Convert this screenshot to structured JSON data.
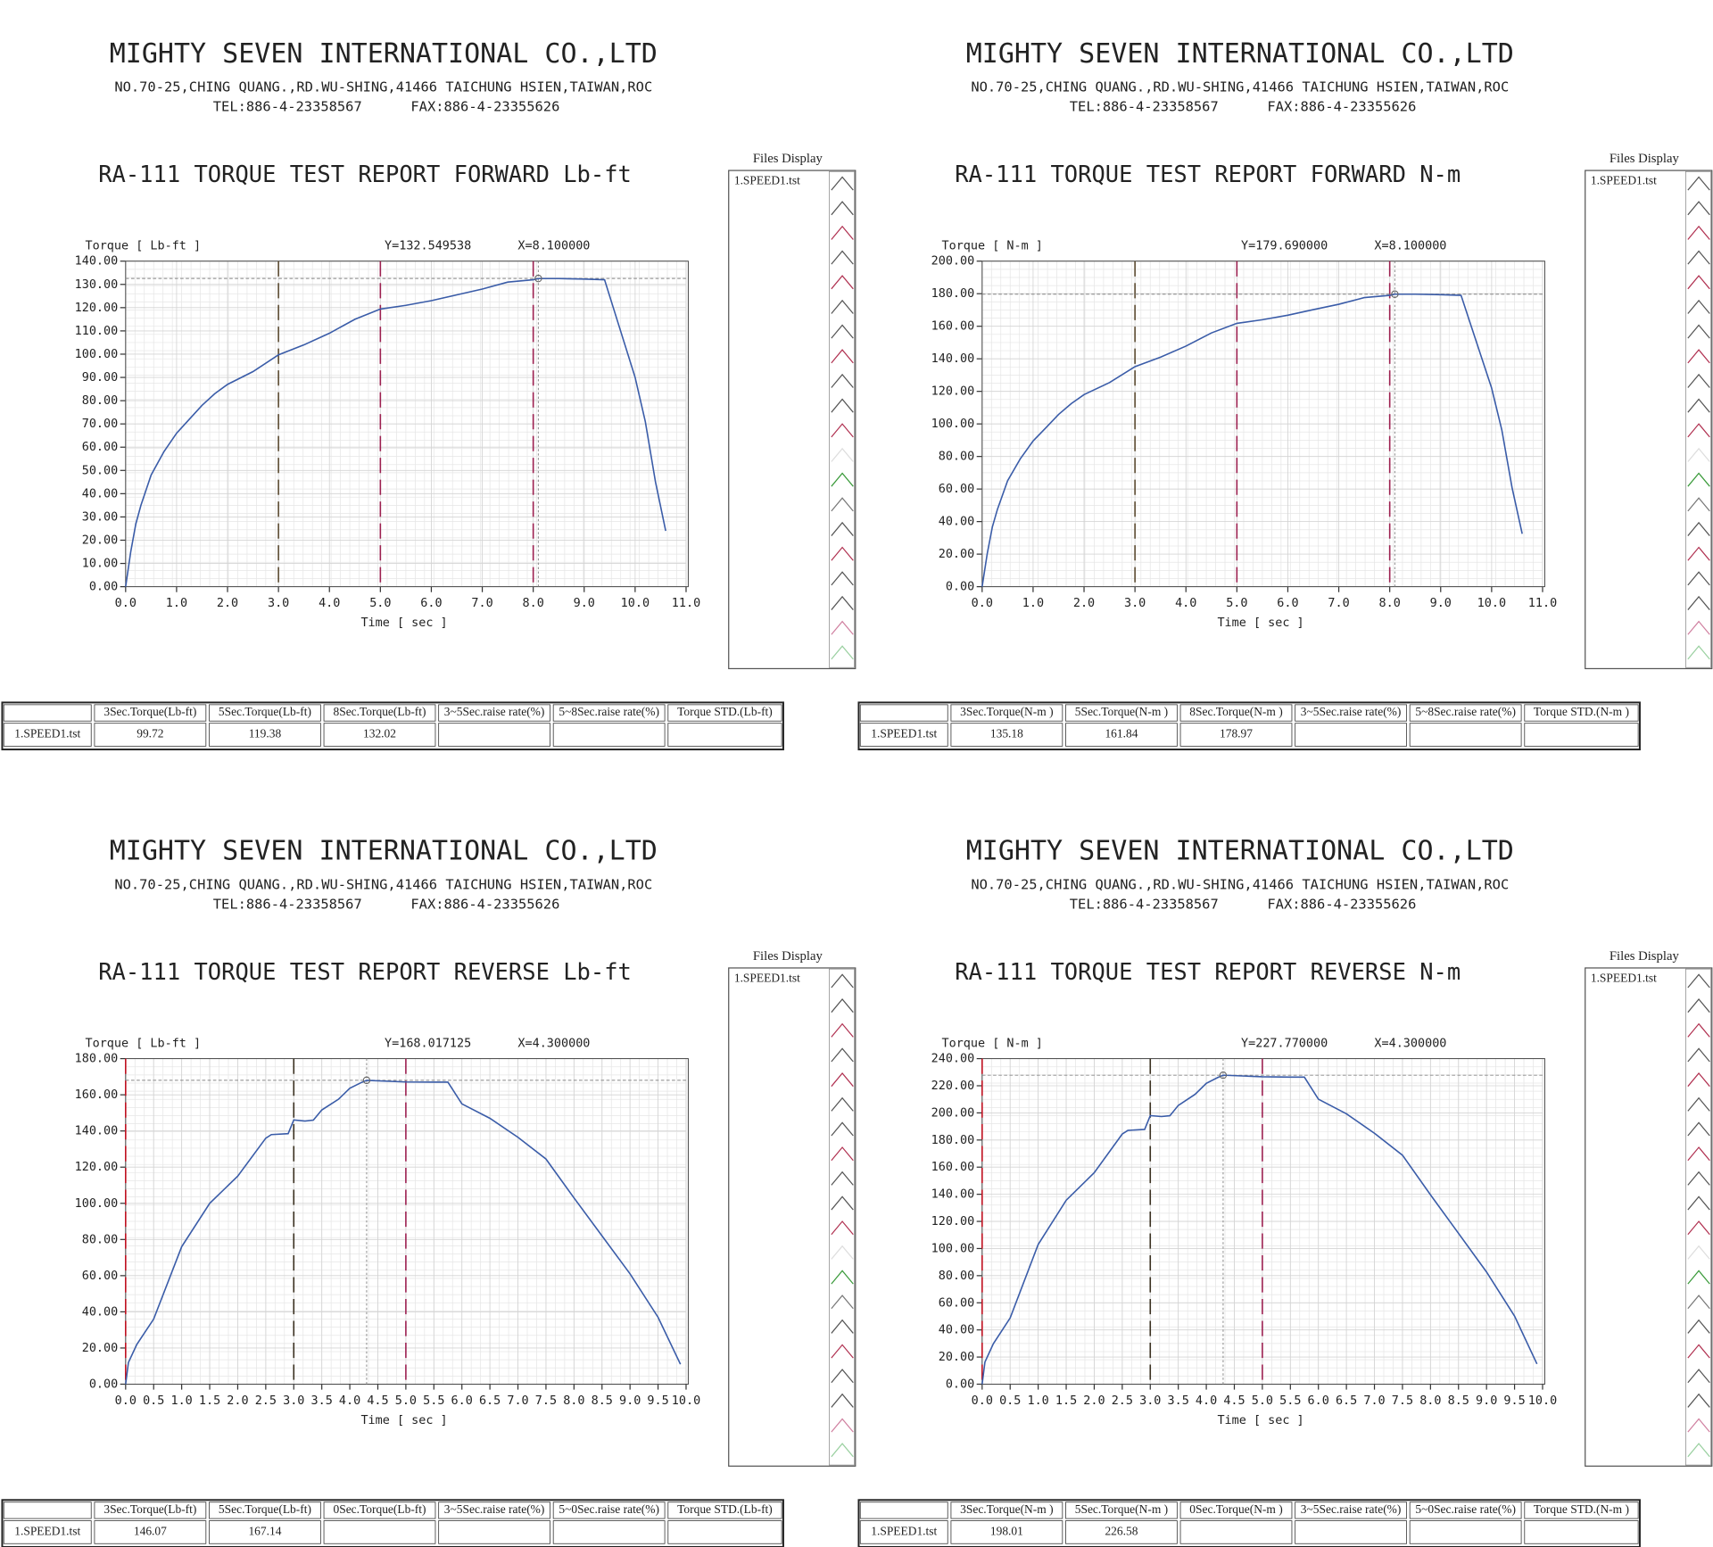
{
  "panels": [
    {
      "company": "MIGHTY SEVEN INTERNATIONAL CO.,LTD",
      "address": "NO.70-25,CHING QUANG.,RD.WU-SHING,41466 TAICHUNG HSIEN,TAIWAN,ROC",
      "tel": "TEL:886-4-23358567",
      "fax": "FAX:886-4-23355626",
      "files_title": "Files Display",
      "files": [
        "1.SPEED1.tst"
      ],
      "table": {
        "header": [
          "3Sec.Torque(Lb-ft)",
          "5Sec.Torque(Lb-ft)",
          "8Sec.Torque(Lb-ft)",
          "3~5Sec.raise rate(%)",
          "5~8Sec.raise rate(%)",
          "Torque STD.(Lb-ft)"
        ],
        "rows": [
          [
            "1.SPEED1.tst",
            "99.72",
            "119.38",
            "132.02"
          ]
        ]
      }
    },
    {
      "company": "MIGHTY SEVEN INTERNATIONAL CO.,LTD",
      "address": "NO.70-25,CHING QUANG.,RD.WU-SHING,41466 TAICHUNG HSIEN,TAIWAN,ROC",
      "tel": "TEL:886-4-23358567",
      "fax": "FAX:886-4-23355626",
      "files_title": "Files Display",
      "files": [
        "1.SPEED1.tst"
      ],
      "table": {
        "header": [
          "3Sec.Torque(N-m )",
          "5Sec.Torque(N-m )",
          "8Sec.Torque(N-m )",
          "3~5Sec.raise rate(%)",
          "5~8Sec.raise rate(%)",
          "Torque STD.(N-m )"
        ],
        "rows": [
          [
            "1.SPEED1.tst",
            "135.18",
            "161.84",
            "178.97"
          ]
        ]
      }
    },
    {
      "company": "MIGHTY SEVEN INTERNATIONAL CO.,LTD",
      "address": "NO.70-25,CHING QUANG.,RD.WU-SHING,41466 TAICHUNG HSIEN,TAIWAN,ROC",
      "tel": "TEL:886-4-23358567",
      "fax": "FAX:886-4-23355626",
      "files_title": "Files Display",
      "files": [
        "1.SPEED1.tst"
      ],
      "table": {
        "header": [
          "3Sec.Torque(Lb-ft)",
          "5Sec.Torque(Lb-ft)",
          "0Sec.Torque(Lb-ft)",
          "3~5Sec.raise rate(%)",
          "5~0Sec.raise rate(%)",
          "Torque STD.(Lb-ft)"
        ],
        "rows": [
          [
            "1.SPEED1.tst",
            "146.07",
            "167.14"
          ]
        ]
      }
    },
    {
      "company": "MIGHTY SEVEN INTERNATIONAL CO.,LTD",
      "address": "NO.70-25,CHING QUANG.,RD.WU-SHING,41466 TAICHUNG HSIEN,TAIWAN,ROC",
      "tel": "TEL:886-4-23358567",
      "fax": "FAX:886-4-23355626",
      "files_title": "Files Display",
      "files": [
        "1.SPEED1.tst"
      ],
      "table": {
        "header": [
          "3Sec.Torque(N-m )",
          "5Sec.Torque(N-m )",
          "0Sec.Torque(N-m )",
          "3~5Sec.raise rate(%)",
          "5~0Sec.raise rate(%)",
          "Torque STD.(N-m )"
        ],
        "rows": [
          [
            "1.SPEED1.tst",
            "198.01",
            "226.58"
          ]
        ]
      }
    }
  ],
  "chart_data": [
    {
      "type": "line",
      "title": "RA-111 TORQUE TEST REPORT FORWARD Lb-ft",
      "y_label": "Torque [ Lb-ft ]",
      "x_label": "Time [ sec ]",
      "cursor": {
        "y": {
          "value": 132.549538,
          "label": "Y=132.549538"
        },
        "x": {
          "value": 8.1,
          "label": "X=8.100000"
        }
      },
      "markers": [
        {
          "x": 3,
          "color": "#5a4a30"
        },
        {
          "x": 5,
          "color": "#9c2050"
        },
        {
          "x": 8,
          "color": "#9c2050"
        }
      ],
      "x": [
        0,
        0.1,
        0.2,
        0.3,
        0.5,
        0.75,
        1,
        1.25,
        1.5,
        1.75,
        2,
        2.5,
        3,
        3.5,
        4,
        4.5,
        5,
        5.5,
        6,
        6.5,
        7,
        7.5,
        8,
        8.1,
        8.5,
        9,
        9.4,
        9.6,
        9.8,
        10,
        10.2,
        10.4,
        10.6
      ],
      "series": [
        {
          "color": "#3a5ca8",
          "values": [
            0,
            15,
            27,
            35,
            48,
            58,
            66,
            72,
            78,
            83,
            87,
            92.5,
            99.7,
            104,
            109,
            115,
            119.4,
            121,
            123,
            125.5,
            128,
            131,
            132,
            132.5,
            132.5,
            132.3,
            132,
            118,
            104,
            90,
            71,
            45,
            24
          ]
        }
      ],
      "xlim": [
        0,
        11
      ],
      "ylim": [
        0,
        140
      ],
      "grid": true,
      "xticks": [
        {
          "value": 0,
          "label": "0.0"
        },
        {
          "value": 1,
          "label": "1.0"
        },
        {
          "value": 2,
          "label": "2.0"
        },
        {
          "value": 3,
          "label": "3.0"
        },
        {
          "value": 4,
          "label": "4.0"
        },
        {
          "value": 5,
          "label": "5.0"
        },
        {
          "value": 6,
          "label": "6.0"
        },
        {
          "value": 7,
          "label": "7.0"
        },
        {
          "value": 8,
          "label": "8.0"
        },
        {
          "value": 9,
          "label": "9.0"
        },
        {
          "value": 10,
          "label": "10.0"
        },
        {
          "value": 11,
          "label": "11.0"
        }
      ],
      "yticks": [
        {
          "value": 0,
          "label": "0.00"
        },
        {
          "value": 10,
          "label": "10.00"
        },
        {
          "value": 20,
          "label": "20.00"
        },
        {
          "value": 30,
          "label": "30.00"
        },
        {
          "value": 40,
          "label": "40.00"
        },
        {
          "value": 50,
          "label": "50.00"
        },
        {
          "value": 60,
          "label": "60.00"
        },
        {
          "value": 70,
          "label": "70.00"
        },
        {
          "value": 80,
          "label": "80.00"
        },
        {
          "value": 90,
          "label": "90.00"
        },
        {
          "value": 100,
          "label": "100.00"
        },
        {
          "value": 110,
          "label": "110.00"
        },
        {
          "value": 120,
          "label": "120.00"
        },
        {
          "value": 130,
          "label": "130.00"
        },
        {
          "value": 140,
          "label": "140.00"
        }
      ]
    },
    {
      "type": "line",
      "title": "RA-111 TORQUE TEST REPORT FORWARD N-m",
      "y_label": "Torque [ N-m  ]",
      "x_label": "Time [ sec ]",
      "cursor": {
        "y": {
          "value": 179.69,
          "label": "Y=179.690000"
        },
        "x": {
          "value": 8.1,
          "label": "X=8.100000"
        }
      },
      "markers": [
        {
          "x": 3,
          "color": "#5a4a30"
        },
        {
          "x": 5,
          "color": "#9c2050"
        },
        {
          "x": 8,
          "color": "#9c2050"
        }
      ],
      "x": [
        0,
        0.1,
        0.2,
        0.3,
        0.5,
        0.75,
        1,
        1.25,
        1.5,
        1.75,
        2,
        2.5,
        3,
        3.5,
        4,
        4.5,
        5,
        5.5,
        6,
        6.5,
        7,
        7.5,
        8,
        8.1,
        8.5,
        9,
        9.4,
        9.6,
        9.8,
        10,
        10.2,
        10.4,
        10.6
      ],
      "series": [
        {
          "color": "#3a5ca8",
          "values": [
            0,
            20.3,
            36.6,
            47.5,
            65.1,
            78.6,
            89.5,
            97.6,
            105.8,
            112.5,
            118,
            125.4,
            135.2,
            141,
            147.8,
            155.9,
            161.8,
            164,
            166.8,
            170.2,
            173.5,
            177.6,
            179,
            179.7,
            179.7,
            179.4,
            179,
            160,
            141,
            122,
            96.3,
            61,
            32.5
          ]
        }
      ],
      "xlim": [
        0,
        11
      ],
      "ylim": [
        0,
        200
      ],
      "grid": true,
      "xticks": [
        {
          "value": 0,
          "label": "0.0"
        },
        {
          "value": 1,
          "label": "1.0"
        },
        {
          "value": 2,
          "label": "2.0"
        },
        {
          "value": 3,
          "label": "3.0"
        },
        {
          "value": 4,
          "label": "4.0"
        },
        {
          "value": 5,
          "label": "5.0"
        },
        {
          "value": 6,
          "label": "6.0"
        },
        {
          "value": 7,
          "label": "7.0"
        },
        {
          "value": 8,
          "label": "8.0"
        },
        {
          "value": 9,
          "label": "9.0"
        },
        {
          "value": 10,
          "label": "10.0"
        },
        {
          "value": 11,
          "label": "11.0"
        }
      ],
      "yticks": [
        {
          "value": 0,
          "label": "0.00"
        },
        {
          "value": 20,
          "label": "20.00"
        },
        {
          "value": 40,
          "label": "40.00"
        },
        {
          "value": 60,
          "label": "60.00"
        },
        {
          "value": 80,
          "label": "80.00"
        },
        {
          "value": 100,
          "label": "100.00"
        },
        {
          "value": 120,
          "label": "120.00"
        },
        {
          "value": 140,
          "label": "140.00"
        },
        {
          "value": 160,
          "label": "160.00"
        },
        {
          "value": 180,
          "label": "180.00"
        },
        {
          "value": 200,
          "label": "200.00"
        }
      ]
    },
    {
      "type": "line",
      "title": "RA-111 TORQUE TEST REPORT REVERSE Lb-ft",
      "y_label": "Torque [ Lb-ft ]",
      "x_label": "Time [ sec ]",
      "cursor": {
        "y": {
          "value": 168.017125,
          "label": "Y=168.017125"
        },
        "x": {
          "value": 4.3,
          "label": "X=4.300000"
        }
      },
      "markers": [
        {
          "x": 0,
          "color": "#c01020"
        },
        {
          "x": 3,
          "color": "#3a3020"
        },
        {
          "x": 5,
          "color": "#9c2050"
        }
      ],
      "x": [
        0,
        0.05,
        0.2,
        0.5,
        1,
        1.5,
        2,
        2.5,
        2.6,
        2.9,
        3,
        3.2,
        3.35,
        3.5,
        3.8,
        4,
        4.2,
        4.3,
        5,
        5.5,
        5.75,
        6,
        6.5,
        7,
        7.5,
        8,
        8.5,
        9,
        9.5,
        9.9
      ],
      "series": [
        {
          "color": "#3a5ca8",
          "values": [
            0,
            12,
            22,
            36,
            76,
            100,
            115,
            136,
            138,
            138.5,
            146.1,
            145.5,
            146,
            151.6,
            157.6,
            163.6,
            166.7,
            168,
            167.1,
            167,
            167,
            155,
            147,
            136.5,
            124.5,
            103,
            82,
            61,
            37,
            11
          ]
        }
      ],
      "xlim": [
        0,
        10
      ],
      "ylim": [
        0,
        180
      ],
      "grid": true,
      "xticks": [
        {
          "value": 0,
          "label": "0.0"
        },
        {
          "value": 0.5,
          "label": "0.5"
        },
        {
          "value": 1,
          "label": "1.0"
        },
        {
          "value": 1.5,
          "label": "1.5"
        },
        {
          "value": 2,
          "label": "2.0"
        },
        {
          "value": 2.5,
          "label": "2.5"
        },
        {
          "value": 3,
          "label": "3.0"
        },
        {
          "value": 3.5,
          "label": "3.5"
        },
        {
          "value": 4,
          "label": "4.0"
        },
        {
          "value": 4.5,
          "label": "4.5"
        },
        {
          "value": 5,
          "label": "5.0"
        },
        {
          "value": 5.5,
          "label": "5.5"
        },
        {
          "value": 6,
          "label": "6.0"
        },
        {
          "value": 6.5,
          "label": "6.5"
        },
        {
          "value": 7,
          "label": "7.0"
        },
        {
          "value": 7.5,
          "label": "7.5"
        },
        {
          "value": 8,
          "label": "8.0"
        },
        {
          "value": 8.5,
          "label": "8.5"
        },
        {
          "value": 9,
          "label": "9.0"
        },
        {
          "value": 9.5,
          "label": "9.5"
        },
        {
          "value": 10,
          "label": "10.0"
        }
      ],
      "yticks": [
        {
          "value": 0,
          "label": "0.00"
        },
        {
          "value": 20,
          "label": "20.00"
        },
        {
          "value": 40,
          "label": "40.00"
        },
        {
          "value": 60,
          "label": "60.00"
        },
        {
          "value": 80,
          "label": "80.00"
        },
        {
          "value": 100,
          "label": "100.00"
        },
        {
          "value": 120,
          "label": "120.00"
        },
        {
          "value": 140,
          "label": "140.00"
        },
        {
          "value": 160,
          "label": "160.00"
        },
        {
          "value": 180,
          "label": "180.00"
        }
      ]
    },
    {
      "type": "line",
      "title": "RA-111 TORQUE TEST REPORT REVERSE N-m",
      "y_label": "Torque [ N-m  ]",
      "x_label": "Time [ sec ]",
      "cursor": {
        "y": {
          "value": 227.77,
          "label": "Y=227.770000"
        },
        "x": {
          "value": 4.3,
          "label": "X=4.300000"
        }
      },
      "markers": [
        {
          "x": 0,
          "color": "#c01020"
        },
        {
          "x": 3,
          "color": "#3a3020"
        },
        {
          "x": 5,
          "color": "#9c2050"
        }
      ],
      "x": [
        0,
        0.05,
        0.2,
        0.5,
        1,
        1.5,
        2,
        2.5,
        2.6,
        2.9,
        3,
        3.2,
        3.35,
        3.5,
        3.8,
        4,
        4.2,
        4.3,
        5,
        5.5,
        5.75,
        6,
        6.5,
        7,
        7.5,
        8,
        8.5,
        9,
        9.5,
        9.9
      ],
      "series": [
        {
          "color": "#3a5ca8",
          "values": [
            0,
            16.3,
            29.8,
            48.8,
            103,
            135.6,
            155.9,
            184.4,
            187.1,
            187.8,
            198,
            197.3,
            197.9,
            205.5,
            213.7,
            221.8,
            226,
            227.8,
            226.6,
            226.4,
            226.4,
            210.1,
            199.3,
            185,
            168.8,
            139.6,
            111.2,
            82.7,
            50.2,
            14.9
          ]
        }
      ],
      "xlim": [
        0,
        10
      ],
      "ylim": [
        0,
        240
      ],
      "grid": true,
      "xticks": [
        {
          "value": 0,
          "label": "0.0"
        },
        {
          "value": 0.5,
          "label": "0.5"
        },
        {
          "value": 1,
          "label": "1.0"
        },
        {
          "value": 1.5,
          "label": "1.5"
        },
        {
          "value": 2,
          "label": "2.0"
        },
        {
          "value": 2.5,
          "label": "2.5"
        },
        {
          "value": 3,
          "label": "3.0"
        },
        {
          "value": 3.5,
          "label": "3.5"
        },
        {
          "value": 4,
          "label": "4.0"
        },
        {
          "value": 4.5,
          "label": "4.5"
        },
        {
          "value": 5,
          "label": "5.0"
        },
        {
          "value": 5.5,
          "label": "5.5"
        },
        {
          "value": 6,
          "label": "6.0"
        },
        {
          "value": 6.5,
          "label": "6.5"
        },
        {
          "value": 7,
          "label": "7.0"
        },
        {
          "value": 7.5,
          "label": "7.5"
        },
        {
          "value": 8,
          "label": "8.0"
        },
        {
          "value": 8.5,
          "label": "8.5"
        },
        {
          "value": 9,
          "label": "9.0"
        },
        {
          "value": 9.5,
          "label": "9.5"
        },
        {
          "value": 10,
          "label": "10.0"
        }
      ],
      "yticks": [
        {
          "value": 0,
          "label": "0.00"
        },
        {
          "value": 20,
          "label": "20.00"
        },
        {
          "value": 40,
          "label": "40.00"
        },
        {
          "value": 60,
          "label": "60.00"
        },
        {
          "value": 80,
          "label": "80.00"
        },
        {
          "value": 100,
          "label": "100.00"
        },
        {
          "value": 120,
          "label": "120.00"
        },
        {
          "value": 140,
          "label": "140.00"
        },
        {
          "value": 160,
          "label": "160.00"
        },
        {
          "value": 180,
          "label": "180.00"
        },
        {
          "value": 200,
          "label": "200.00"
        },
        {
          "value": 220,
          "label": "220.00"
        },
        {
          "value": 240,
          "label": "240.00"
        }
      ]
    }
  ]
}
